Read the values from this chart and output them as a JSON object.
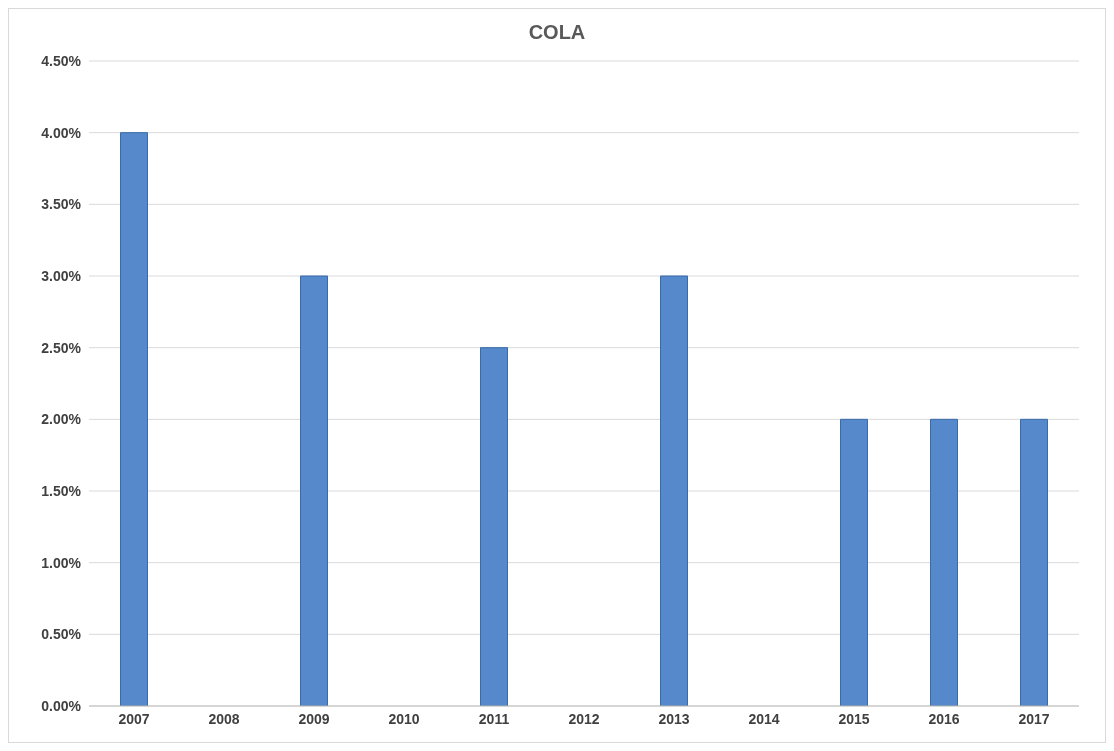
{
  "chart_data": {
    "type": "bar",
    "title": "COLA",
    "categories": [
      "2007",
      "2008",
      "2009",
      "2010",
      "2011",
      "2012",
      "2013",
      "2014",
      "2015",
      "2016",
      "2017"
    ],
    "values": [
      4,
      0,
      3,
      0,
      2.5,
      0,
      3,
      0,
      2,
      2,
      2
    ],
    "color": "#5589cc",
    "ylim": [
      0,
      4.5
    ],
    "yticks": [
      {
        "value": 0,
        "label": "0.00%"
      },
      {
        "value": 0.5,
        "label": "0.50%"
      },
      {
        "value": 1,
        "label": "1.00%"
      },
      {
        "value": 1.5,
        "label": "1.50%"
      },
      {
        "value": 2,
        "label": "2.00%"
      },
      {
        "value": 2.5,
        "label": "2.50%"
      },
      {
        "value": 3,
        "label": "3.00%"
      },
      {
        "value": 3.5,
        "label": "3.50%"
      },
      {
        "value": 4,
        "label": "4.00%"
      },
      {
        "value": 4.5,
        "label": "4.50%"
      }
    ],
    "grid": "y",
    "legend": false
  }
}
